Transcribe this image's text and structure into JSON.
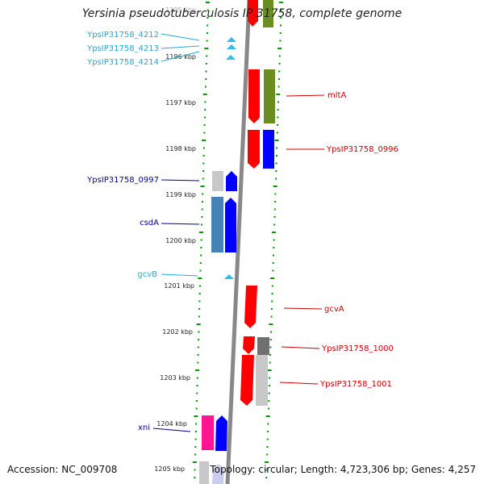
{
  "title": "Yersinia pseudotuberculosis IP 31758, complete genome",
  "footer": {
    "accession": "Accession: NC_009708",
    "summary": "Topology: circular; Length: 4,723,306 bp; Genes: 4,257"
  },
  "colors": {
    "forward_red": "#ff0000",
    "reverse_blue": "#0000ff",
    "olive": "#6b8e23",
    "steel_blue": "#4682b4",
    "light_gray": "#c8c8c8",
    "dark_gray": "#707070",
    "pink": "#ff1493",
    "cyan_rna": "#33bbee",
    "tick_green": "#009900",
    "label_cyan": "#22aadd",
    "label_navy": "#000099",
    "label_red": "#cc0000",
    "backbone": "#888888"
  },
  "scale_labels": [
    "1195 kbp",
    "1196 kbp",
    "1197 kbp",
    "1198 kbp",
    "1199 kbp",
    "1200 kbp",
    "1201 kbp",
    "1202 kbp",
    "1203 kbp",
    "1204 kbp",
    "1205 kbp"
  ],
  "left_labels": [
    {
      "text": "YpsIP31758_4212",
      "color": "cyan"
    },
    {
      "text": "YpsIP31758_4213",
      "color": "cyan"
    },
    {
      "text": "YpsIP31758_4214",
      "color": "cyan"
    },
    {
      "text": "YpsIP31758_0997",
      "color": "navy"
    },
    {
      "text": "csdA",
      "color": "navy"
    },
    {
      "text": "gcvB",
      "color": "cyan"
    },
    {
      "text": "xni",
      "color": "navy"
    }
  ],
  "right_labels": [
    {
      "text": "mltA",
      "color": "red"
    },
    {
      "text": "YpsIP31758_0996",
      "color": "red"
    },
    {
      "text": "gcvA",
      "color": "red"
    },
    {
      "text": "YpsIP31758_1000",
      "color": "red"
    },
    {
      "text": "YpsIP31758_1001",
      "color": "red"
    }
  ]
}
